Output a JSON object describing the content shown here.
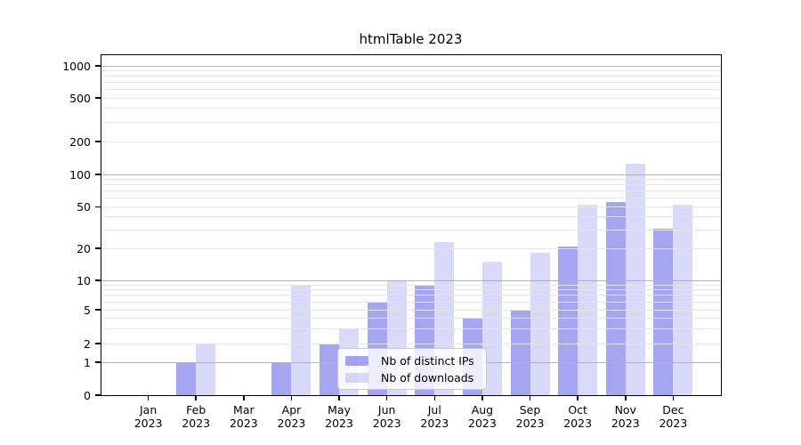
{
  "title": "htmlTable 2023",
  "colors": {
    "bar_ips": "rgba(110,110,232,0.62)",
    "bar_downloads": "rgba(149,149,241,0.36)",
    "grid_major": "#b2b2b2",
    "grid_minor": "#e5e5e5",
    "axis": "#000000",
    "legend_border": "#c8c8c8"
  },
  "legend": {
    "items": [
      {
        "label": "Nb of distinct IPs",
        "key": "ips"
      },
      {
        "label": "Nb of downloads",
        "key": "downloads"
      }
    ]
  },
  "chart_data": {
    "type": "bar",
    "title": "htmlTable 2023",
    "categories": [
      "Jan 2023",
      "Feb 2023",
      "Mar 2023",
      "Apr 2023",
      "May 2023",
      "Jun 2023",
      "Jul 2023",
      "Aug 2023",
      "Sep 2023",
      "Oct 2023",
      "Nov 2023",
      "Dec 2023"
    ],
    "series": [
      {
        "name": "Nb of distinct IPs",
        "key": "ips",
        "values": [
          0,
          1,
          0,
          1,
          2,
          6,
          9,
          4,
          5,
          21,
          56,
          31
        ]
      },
      {
        "name": "Nb of downloads",
        "key": "downloads",
        "values": [
          0,
          2,
          0,
          9,
          3,
          10,
          23,
          15,
          18,
          52,
          125,
          52
        ]
      }
    ],
    "y_scale": "symlog",
    "y_ticks": [
      0,
      1,
      2,
      5,
      10,
      20,
      50,
      100,
      200,
      500,
      1000
    ],
    "y_minor_ticks": [
      3,
      4,
      6,
      7,
      8,
      9,
      30,
      40,
      60,
      70,
      80,
      90,
      300,
      400,
      600,
      700,
      800,
      900
    ],
    "ylim": [
      0,
      1000
    ],
    "xlabel": "",
    "ylabel": "",
    "grid": "on",
    "legend_position": "lower-center"
  }
}
